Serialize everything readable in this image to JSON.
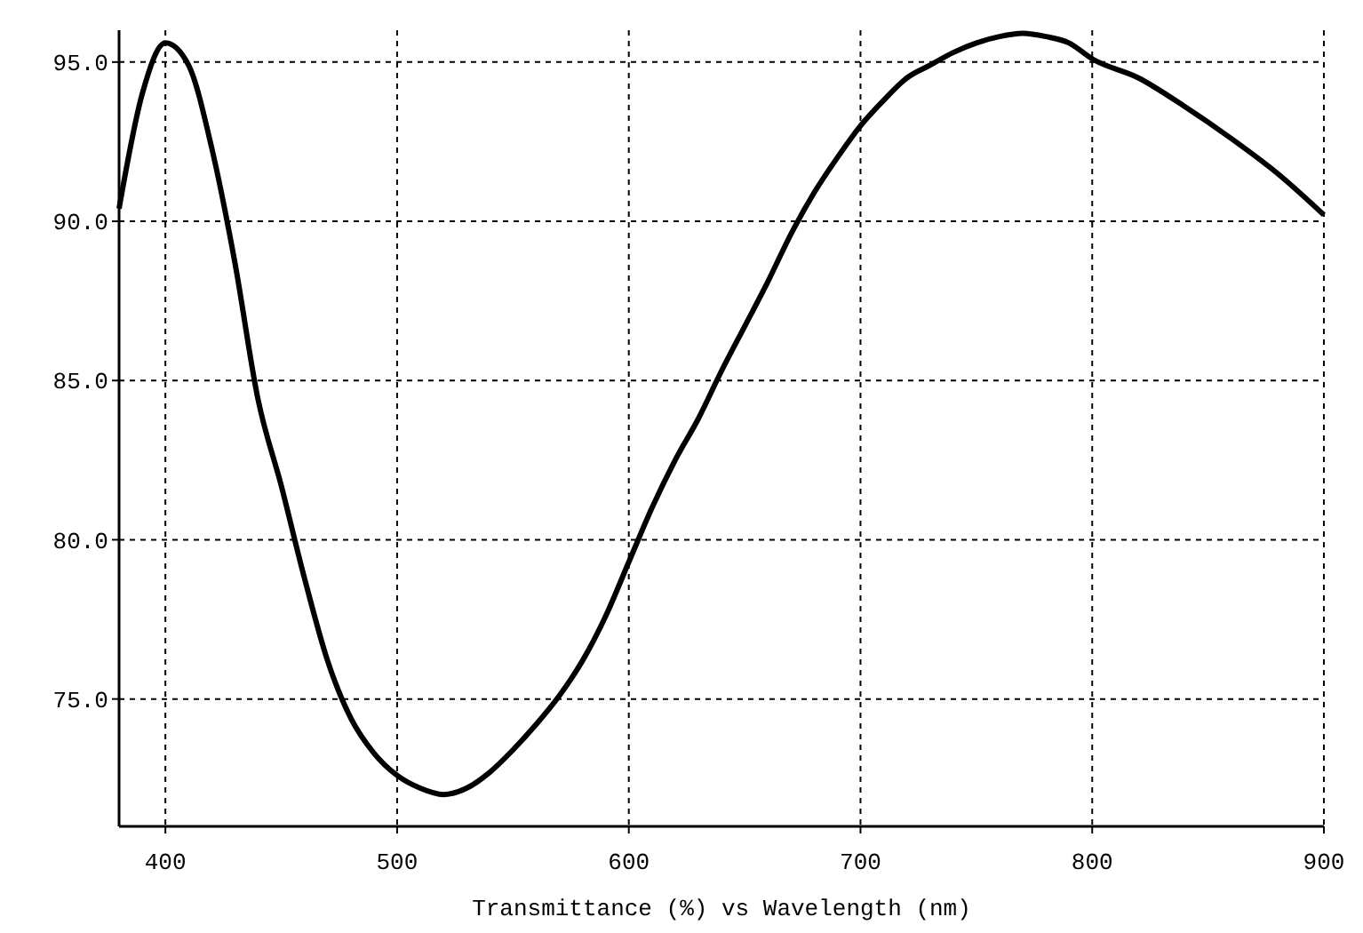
{
  "chart_data": {
    "type": "line",
    "xlabel": "Transmittance (%)  vs  Wavelength (nm)",
    "x": [
      380,
      390,
      400,
      410,
      420,
      430,
      440,
      450,
      460,
      470,
      480,
      490,
      500,
      510,
      520,
      530,
      540,
      550,
      560,
      570,
      580,
      590,
      600,
      610,
      620,
      630,
      640,
      650,
      660,
      670,
      680,
      690,
      700,
      710,
      720,
      730,
      740,
      750,
      760,
      770,
      780,
      790,
      800,
      820,
      840,
      860,
      880,
      900
    ],
    "series": [
      {
        "color": "#000000",
        "values": [
          90.4,
          94.0,
          95.6,
          94.9,
          92.3,
          88.7,
          84.4,
          81.7,
          78.8,
          76.2,
          74.4,
          73.3,
          72.6,
          72.2,
          72.0,
          72.2,
          72.7,
          73.4,
          74.2,
          75.1,
          76.2,
          77.6,
          79.3,
          81.0,
          82.5,
          83.8,
          85.3,
          86.7,
          88.1,
          89.6,
          90.9,
          92.0,
          93.0,
          93.8,
          94.5,
          94.9,
          95.3,
          95.6,
          95.8,
          95.9,
          95.8,
          95.6,
          95.1,
          94.5,
          93.6,
          92.6,
          91.5,
          90.2
        ]
      }
    ],
    "xlim": [
      380,
      900
    ],
    "ylim": [
      71,
      96
    ],
    "xticks": [
      400,
      500,
      600,
      700,
      800,
      900
    ],
    "yticks": [
      {
        "value": 75,
        "label": "75.0"
      },
      {
        "value": 80,
        "label": "80.0"
      },
      {
        "value": 85,
        "label": "85.0"
      },
      {
        "value": 90,
        "label": "90.0"
      },
      {
        "value": 95,
        "label": "95.0"
      }
    ],
    "grid": true,
    "line_style": "solid",
    "marker": "none"
  }
}
